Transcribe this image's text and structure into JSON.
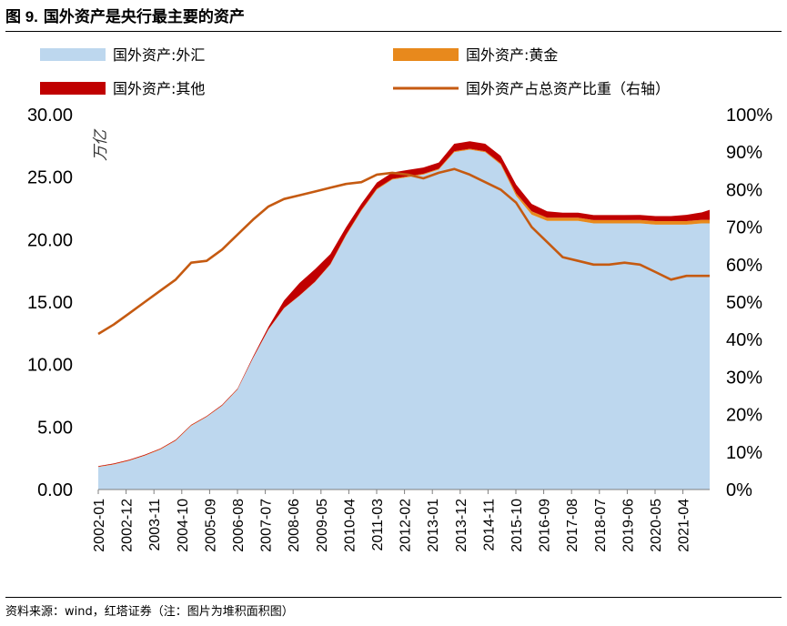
{
  "figure": {
    "label": "图 9.",
    "title": "国外资产是央行最主要的资产",
    "source": "资料来源：wind，红塔证券（注：图片为堆积面积图）"
  },
  "chart_data": {
    "type": "area",
    "stacked": true,
    "ylabel": "万亿",
    "ylim": [
      0,
      30
    ],
    "yticks": [
      "0.00",
      "5.00",
      "10.00",
      "15.00",
      "20.00",
      "25.00",
      "30.00"
    ],
    "y2lim": [
      0,
      100
    ],
    "y2ticks": [
      "0%",
      "10%",
      "20%",
      "30%",
      "40%",
      "50%",
      "60%",
      "70%",
      "80%",
      "90%",
      "100%"
    ],
    "xticks": [
      "2002-01",
      "2002-12",
      "2003-11",
      "2004-10",
      "2005-09",
      "2006-08",
      "2007-07",
      "2008-06",
      "2009-05",
      "2010-04",
      "2011-03",
      "2012-02",
      "2013-01",
      "2013-12",
      "2014-11",
      "2015-10",
      "2016-09",
      "2017-08",
      "2018-07",
      "2019-06",
      "2020-05",
      "2021-04"
    ],
    "x": [
      2002.0,
      2002.5,
      2003.0,
      2003.5,
      2004.0,
      2004.5,
      2005.0,
      2005.5,
      2006.0,
      2006.5,
      2007.0,
      2007.5,
      2008.0,
      2008.5,
      2009.0,
      2009.5,
      2010.0,
      2010.5,
      2011.0,
      2011.5,
      2012.0,
      2012.5,
      2013.0,
      2013.5,
      2014.0,
      2014.5,
      2015.0,
      2015.5,
      2016.0,
      2016.5,
      2017.0,
      2017.5,
      2018.0,
      2018.5,
      2019.0,
      2019.5,
      2020.0,
      2020.5,
      2021.0,
      2021.5,
      2021.75
    ],
    "series": [
      {
        "name": "国外资产:外汇",
        "color": "#bdd7ee",
        "axis": "left",
        "values": [
          1.8,
          2.0,
          2.3,
          2.7,
          3.2,
          3.9,
          5.1,
          5.8,
          6.7,
          8.0,
          10.5,
          12.8,
          14.5,
          15.5,
          16.6,
          18.0,
          20.3,
          22.3,
          24.0,
          24.8,
          25.0,
          25.2,
          25.6,
          27.0,
          27.2,
          27.0,
          26.0,
          23.5,
          22.0,
          21.5,
          21.5,
          21.5,
          21.3,
          21.3,
          21.3,
          21.3,
          21.2,
          21.2,
          21.2,
          21.3,
          21.3
        ]
      },
      {
        "name": "国外资产:黄金",
        "color": "#e8891c",
        "axis": "left",
        "values": [
          0.03,
          0.03,
          0.03,
          0.03,
          0.03,
          0.03,
          0.03,
          0.03,
          0.03,
          0.03,
          0.03,
          0.03,
          0.03,
          0.03,
          0.03,
          0.05,
          0.07,
          0.07,
          0.07,
          0.07,
          0.07,
          0.07,
          0.07,
          0.07,
          0.07,
          0.07,
          0.1,
          0.2,
          0.26,
          0.26,
          0.26,
          0.26,
          0.26,
          0.26,
          0.26,
          0.27,
          0.28,
          0.28,
          0.28,
          0.28,
          0.28
        ]
      },
      {
        "name": "国外资产:其他",
        "color": "#c00000",
        "axis": "left",
        "values": [
          0.05,
          0.05,
          0.05,
          0.05,
          0.05,
          0.05,
          0.05,
          0.05,
          0.05,
          0.05,
          0.1,
          0.2,
          0.6,
          1.0,
          1.0,
          0.8,
          0.6,
          0.5,
          0.5,
          0.5,
          0.5,
          0.5,
          0.5,
          0.6,
          0.6,
          0.6,
          0.6,
          0.7,
          0.6,
          0.5,
          0.4,
          0.4,
          0.4,
          0.4,
          0.4,
          0.4,
          0.4,
          0.4,
          0.5,
          0.6,
          0.8
        ]
      },
      {
        "name": "国外资产占总资产比重（右轴）",
        "color": "#c55a11",
        "axis": "right",
        "kind": "line",
        "values": [
          41.5,
          44,
          47,
          50,
          53,
          56,
          60.5,
          61,
          64,
          68,
          72,
          75.5,
          77.5,
          78.5,
          79.5,
          80.5,
          81.5,
          82,
          84,
          84.5,
          84,
          83,
          84.5,
          85.5,
          84,
          82,
          80,
          76.5,
          70,
          66,
          62,
          61,
          60,
          60,
          60.5,
          60,
          58,
          56,
          57,
          57,
          57
        ]
      }
    ]
  }
}
